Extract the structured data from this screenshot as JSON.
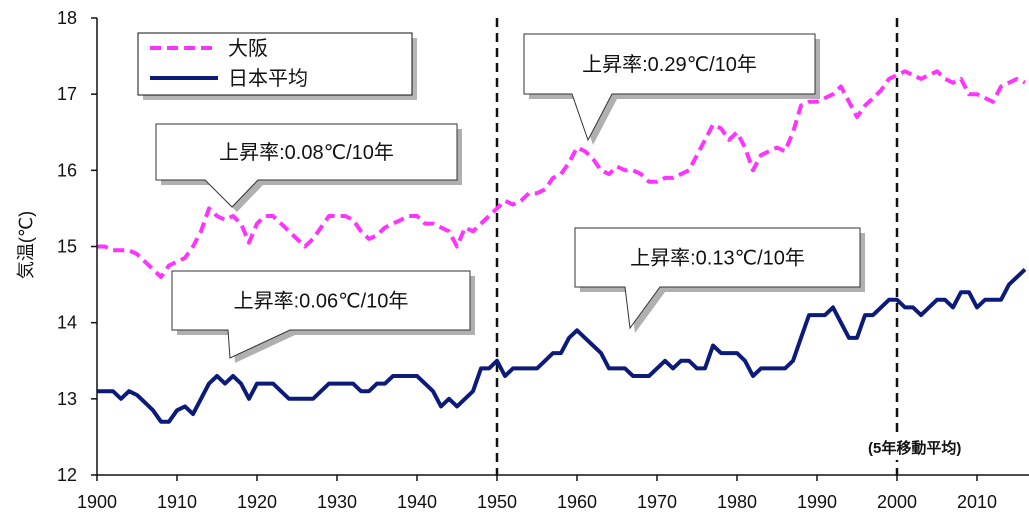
{
  "chart_data": {
    "type": "line",
    "title": "",
    "xlabel": "",
    "ylabel": "気温(℃)",
    "xlim": [
      1900,
      2016.5
    ],
    "ylim": [
      12,
      18
    ],
    "x_ticks": [
      1900,
      1910,
      1920,
      1930,
      1940,
      1950,
      1960,
      1970,
      1980,
      1990,
      2000,
      2010
    ],
    "y_ticks": [
      12,
      13,
      14,
      15,
      16,
      17,
      18
    ],
    "grid": false,
    "legend_position": "top-left",
    "x": [
      1900,
      1901,
      1902,
      1903,
      1904,
      1905,
      1906,
      1907,
      1908,
      1909,
      1910,
      1911,
      1912,
      1913,
      1914,
      1915,
      1916,
      1917,
      1918,
      1919,
      1920,
      1921,
      1922,
      1923,
      1924,
      1925,
      1926,
      1927,
      1928,
      1929,
      1930,
      1931,
      1932,
      1933,
      1934,
      1935,
      1936,
      1937,
      1938,
      1939,
      1940,
      1941,
      1942,
      1943,
      1944,
      1945,
      1946,
      1947,
      1948,
      1949,
      1950,
      1951,
      1952,
      1953,
      1954,
      1955,
      1956,
      1957,
      1958,
      1959,
      1960,
      1961,
      1962,
      1963,
      1964,
      1965,
      1966,
      1967,
      1968,
      1969,
      1970,
      1971,
      1972,
      1973,
      1974,
      1975,
      1976,
      1977,
      1978,
      1979,
      1980,
      1981,
      1982,
      1983,
      1984,
      1985,
      1986,
      1987,
      1988,
      1989,
      1990,
      1991,
      1992,
      1993,
      1994,
      1995,
      1996,
      1997,
      1998,
      1999,
      2000,
      2001,
      2002,
      2003,
      2004,
      2005,
      2006,
      2007,
      2008,
      2009,
      2010,
      2011,
      2012,
      2013,
      2014,
      2015,
      2016
    ],
    "series": [
      {
        "name": "大阪",
        "color": "#ff33ff",
        "style": "dashed",
        "values": [
          15.0,
          15.0,
          14.95,
          14.95,
          14.95,
          14.9,
          14.8,
          14.7,
          14.6,
          14.75,
          14.8,
          14.85,
          15.0,
          15.2,
          15.5,
          15.4,
          15.35,
          15.4,
          15.3,
          15.05,
          15.3,
          15.4,
          15.4,
          15.3,
          15.2,
          15.1,
          15.0,
          15.1,
          15.25,
          15.4,
          15.4,
          15.4,
          15.35,
          15.2,
          15.1,
          15.15,
          15.25,
          15.3,
          15.35,
          15.4,
          15.4,
          15.3,
          15.3,
          15.25,
          15.2,
          15.0,
          15.25,
          15.2,
          15.3,
          15.4,
          15.5,
          15.6,
          15.55,
          15.6,
          15.7,
          15.7,
          15.75,
          15.9,
          15.95,
          16.1,
          16.3,
          16.25,
          16.15,
          16.0,
          15.95,
          16.05,
          16.0,
          16.0,
          15.95,
          15.85,
          15.85,
          15.9,
          15.9,
          15.95,
          16.0,
          16.2,
          16.4,
          16.6,
          16.55,
          16.4,
          16.5,
          16.3,
          16.0,
          16.2,
          16.25,
          16.3,
          16.25,
          16.5,
          16.85,
          16.9,
          16.9,
          16.95,
          17.0,
          17.1,
          16.9,
          16.7,
          16.85,
          16.95,
          17.05,
          17.2,
          17.25,
          17.3,
          17.25,
          17.2,
          17.25,
          17.3,
          17.2,
          17.15,
          17.2,
          17.0,
          17.0,
          16.95,
          16.9,
          17.1,
          17.15,
          17.2,
          17.15
        ]
      },
      {
        "name": "日本平均",
        "color": "#0c1a7a",
        "style": "solid",
        "values": [
          13.1,
          13.1,
          13.1,
          13.0,
          13.1,
          13.05,
          12.95,
          12.85,
          12.7,
          12.7,
          12.85,
          12.9,
          12.8,
          13.0,
          13.2,
          13.3,
          13.2,
          13.3,
          13.2,
          13.0,
          13.2,
          13.2,
          13.2,
          13.1,
          13.0,
          13.0,
          13.0,
          13.0,
          13.1,
          13.2,
          13.2,
          13.2,
          13.2,
          13.1,
          13.1,
          13.2,
          13.2,
          13.3,
          13.3,
          13.3,
          13.3,
          13.2,
          13.1,
          12.9,
          13.0,
          12.9,
          13.0,
          13.1,
          13.4,
          13.4,
          13.5,
          13.3,
          13.4,
          13.4,
          13.4,
          13.4,
          13.5,
          13.6,
          13.6,
          13.8,
          13.9,
          13.8,
          13.7,
          13.6,
          13.4,
          13.4,
          13.4,
          13.3,
          13.3,
          13.3,
          13.4,
          13.5,
          13.4,
          13.5,
          13.5,
          13.4,
          13.4,
          13.7,
          13.6,
          13.6,
          13.6,
          13.5,
          13.3,
          13.4,
          13.4,
          13.4,
          13.4,
          13.5,
          13.8,
          14.1,
          14.1,
          14.1,
          14.2,
          14.0,
          13.8,
          13.8,
          14.1,
          14.1,
          14.2,
          14.3,
          14.3,
          14.2,
          14.2,
          14.1,
          14.2,
          14.3,
          14.3,
          14.2,
          14.4,
          14.4,
          14.2,
          14.3,
          14.3,
          14.3,
          14.5,
          14.6,
          14.7
        ]
      }
    ],
    "reference_lines": [
      {
        "x": 1950,
        "style": "dashed"
      },
      {
        "x": 2000,
        "style": "dashed"
      }
    ],
    "annotations": [
      {
        "text": "上昇率:0.08℃/10年"
      },
      {
        "text": "上昇率:0.29℃/10年"
      },
      {
        "text": "上昇率:0.06℃/10年"
      },
      {
        "text": "上昇率:0.13℃/10年"
      }
    ],
    "note": "(5年移動平均)"
  }
}
